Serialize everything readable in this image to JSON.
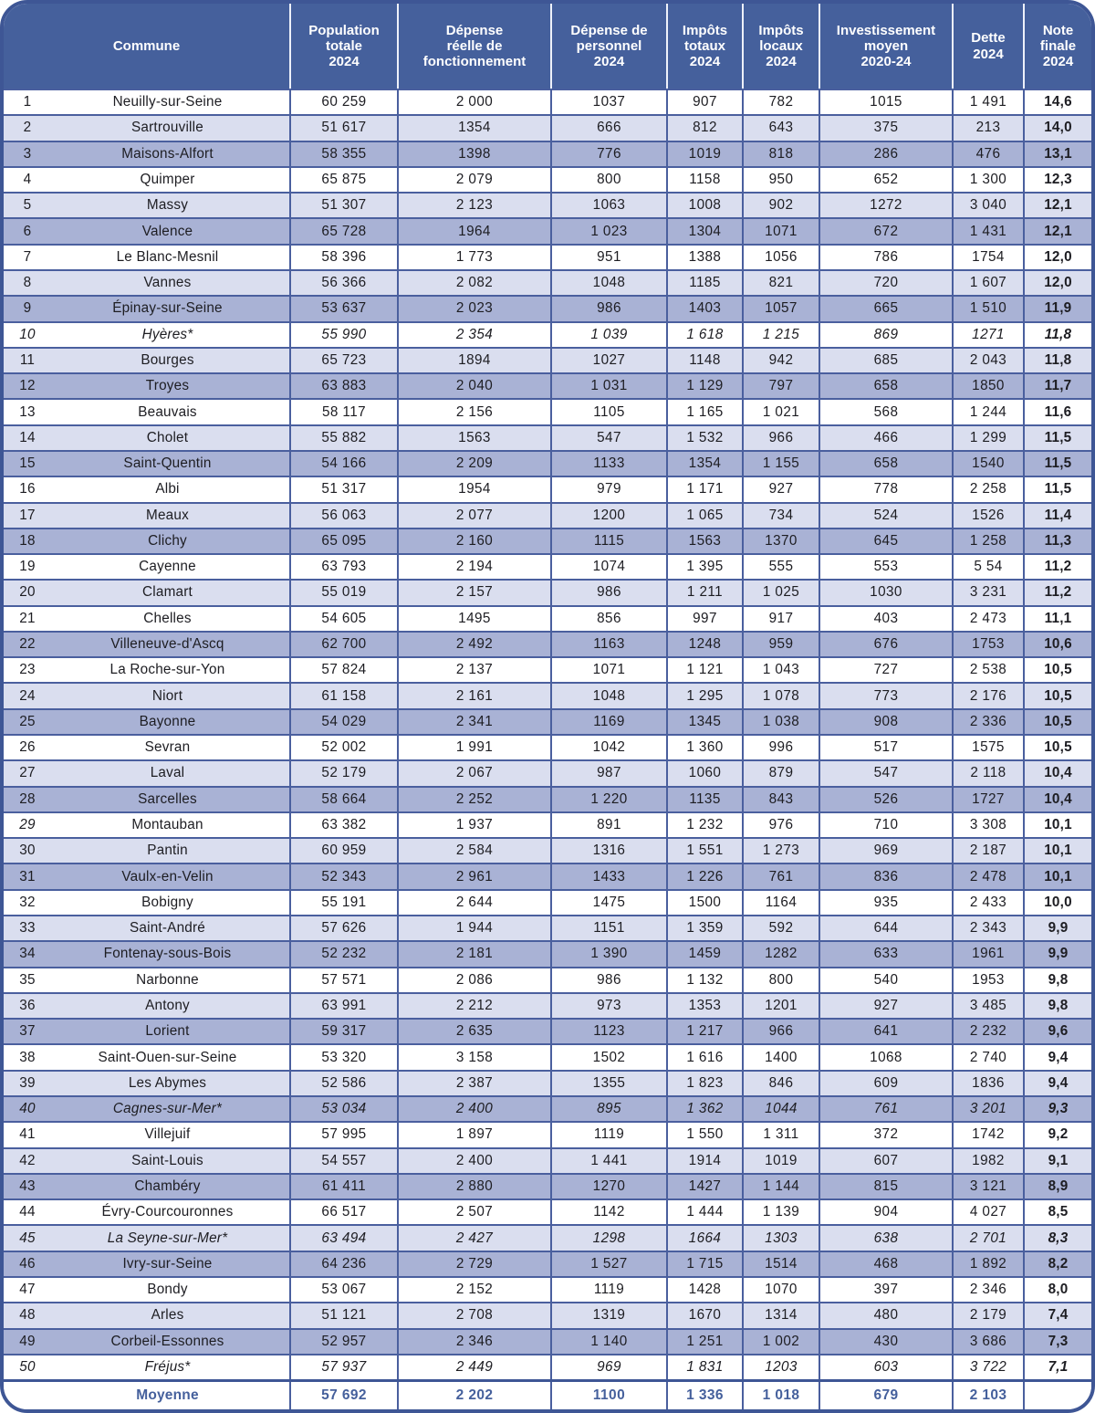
{
  "colors": {
    "header_bg": "#45609c",
    "grid_border": "#4a5f9e",
    "outer_border": "#3e5695",
    "row_light": "#dadeef",
    "row_dark": "#a9b2d5",
    "average_text": "#45609c",
    "header_text": "#ffffff",
    "body_text": "#1d1d22"
  },
  "chart_data": {
    "type": "table",
    "columns": [
      "Commune",
      "Population\ntotale\n2024",
      "Dépense\nréelle de\nfonctionnement",
      "Dépense de\npersonnel\n2024",
      "Impôts\ntotaux\n2024",
      "Impôts\nlocaux\n2024",
      "Investissement\nmoyen\n2020-24",
      "Dette\n2024",
      "Note\nfinale\n2024"
    ],
    "rows": [
      {
        "rank": "1",
        "name": "Neuilly-sur-Seine",
        "values": [
          "60 259",
          "2 000",
          "1037",
          "907",
          "782",
          "1015",
          "1 491"
        ],
        "note": "14,6",
        "shade": "white"
      },
      {
        "rank": "2",
        "name": "Sartrouville",
        "values": [
          "51 617",
          "1354",
          "666",
          "812",
          "643",
          "375",
          "213"
        ],
        "note": "14,0",
        "shade": "light"
      },
      {
        "rank": "3",
        "name": "Maisons-Alfort",
        "values": [
          "58 355",
          "1398",
          "776",
          "1019",
          "818",
          "286",
          "476"
        ],
        "note": "13,1",
        "shade": "dark"
      },
      {
        "rank": "4",
        "name": "Quimper",
        "values": [
          "65 875",
          "2 079",
          "800",
          "1158",
          "950",
          "652",
          "1 300"
        ],
        "note": "12,3",
        "shade": "white"
      },
      {
        "rank": "5",
        "name": "Massy",
        "values": [
          "51 307",
          "2 123",
          "1063",
          "1008",
          "902",
          "1272",
          "3 040"
        ],
        "note": "12,1",
        "shade": "light"
      },
      {
        "rank": "6",
        "name": "Valence",
        "values": [
          "65 728",
          "1964",
          "1 023",
          "1304",
          "1071",
          "672",
          "1 431"
        ],
        "note": "12,1",
        "shade": "dark"
      },
      {
        "rank": "7",
        "name": "Le Blanc-Mesnil",
        "values": [
          "58 396",
          "1 773",
          "951",
          "1388",
          "1056",
          "786",
          "1754"
        ],
        "note": "12,0",
        "shade": "white"
      },
      {
        "rank": "8",
        "name": "Vannes",
        "values": [
          "56 366",
          "2 082",
          "1048",
          "1185",
          "821",
          "720",
          "1 607"
        ],
        "note": "12,0",
        "shade": "light"
      },
      {
        "rank": "9",
        "name": "Épinay-sur-Seine",
        "values": [
          "53 637",
          "2 023",
          "986",
          "1403",
          "1057",
          "665",
          "1 510"
        ],
        "note": "11,9",
        "shade": "dark"
      },
      {
        "rank": "10",
        "name": "Hyères*",
        "values": [
          "55 990",
          "2 354",
          "1 039",
          "1 618",
          "1 215",
          "869",
          "1271"
        ],
        "note": "11,8",
        "shade": "white",
        "italic": true
      },
      {
        "rank": "11",
        "name": "Bourges",
        "values": [
          "65 723",
          "1894",
          "1027",
          "1148",
          "942",
          "685",
          "2 043"
        ],
        "note": "11,8",
        "shade": "light"
      },
      {
        "rank": "12",
        "name": "Troyes",
        "values": [
          "63 883",
          "2 040",
          "1 031",
          "1 129",
          "797",
          "658",
          "1850"
        ],
        "note": "11,7",
        "shade": "dark"
      },
      {
        "rank": "13",
        "name": "Beauvais",
        "values": [
          "58 117",
          "2 156",
          "1105",
          "1 165",
          "1 021",
          "568",
          "1 244"
        ],
        "note": "11,6",
        "shade": "white"
      },
      {
        "rank": "14",
        "name": "Cholet",
        "values": [
          "55 882",
          "1563",
          "547",
          "1 532",
          "966",
          "466",
          "1 299"
        ],
        "note": "11,5",
        "shade": "light"
      },
      {
        "rank": "15",
        "name": "Saint-Quentin",
        "values": [
          "54 166",
          "2 209",
          "1133",
          "1354",
          "1 155",
          "658",
          "1540"
        ],
        "note": "11,5",
        "shade": "dark"
      },
      {
        "rank": "16",
        "name": "Albi",
        "values": [
          "51 317",
          "1954",
          "979",
          "1 171",
          "927",
          "778",
          "2 258"
        ],
        "note": "11,5",
        "shade": "white"
      },
      {
        "rank": "17",
        "name": "Meaux",
        "values": [
          "56 063",
          "2 077",
          "1200",
          "1 065",
          "734",
          "524",
          "1526"
        ],
        "note": "11,4",
        "shade": "light"
      },
      {
        "rank": "18",
        "name": "Clichy",
        "values": [
          "65 095",
          "2 160",
          "1115",
          "1563",
          "1370",
          "645",
          "1 258"
        ],
        "note": "11,3",
        "shade": "dark"
      },
      {
        "rank": "19",
        "name": "Cayenne",
        "values": [
          "63 793",
          "2 194",
          "1074",
          "1 395",
          "555",
          "553",
          "5 54"
        ],
        "note": "11,2",
        "shade": "white"
      },
      {
        "rank": "20",
        "name": "Clamart",
        "values": [
          "55 019",
          "2 157",
          "986",
          "1 211",
          "1 025",
          "1030",
          "3 231"
        ],
        "note": "11,2",
        "shade": "light"
      },
      {
        "rank": "21",
        "name": "Chelles",
        "values": [
          "54 605",
          "1495",
          "856",
          "997",
          "917",
          "403",
          "2 473"
        ],
        "note": "11,1",
        "shade": "white"
      },
      {
        "rank": "22",
        "name": "Villeneuve-d'Ascq",
        "values": [
          "62 700",
          "2 492",
          "1163",
          "1248",
          "959",
          "676",
          "1753"
        ],
        "note": "10,6",
        "shade": "dark"
      },
      {
        "rank": "23",
        "name": "La Roche-sur-Yon",
        "values": [
          "57 824",
          "2 137",
          "1071",
          "1 121",
          "1 043",
          "727",
          "2 538"
        ],
        "note": "10,5",
        "shade": "white"
      },
      {
        "rank": "24",
        "name": "Niort",
        "values": [
          "61 158",
          "2 161",
          "1048",
          "1 295",
          "1 078",
          "773",
          "2 176"
        ],
        "note": "10,5",
        "shade": "light"
      },
      {
        "rank": "25",
        "name": "Bayonne",
        "values": [
          "54 029",
          "2 341",
          "1169",
          "1345",
          "1 038",
          "908",
          "2 336"
        ],
        "note": "10,5",
        "shade": "dark"
      },
      {
        "rank": "26",
        "name": "Sevran",
        "values": [
          "52 002",
          "1 991",
          "1042",
          "1 360",
          "996",
          "517",
          "1575"
        ],
        "note": "10,5",
        "shade": "white"
      },
      {
        "rank": "27",
        "name": "Laval",
        "values": [
          "52 179",
          "2 067",
          "987",
          "1060",
          "879",
          "547",
          "2 118"
        ],
        "note": "10,4",
        "shade": "light"
      },
      {
        "rank": "28",
        "name": "Sarcelles",
        "values": [
          "58 664",
          "2 252",
          "1 220",
          "1135",
          "843",
          "526",
          "1727"
        ],
        "note": "10,4",
        "shade": "dark"
      },
      {
        "rank": "29",
        "name": "Montauban",
        "values": [
          "63 382",
          "1 937",
          "891",
          "1 232",
          "976",
          "710",
          "3 308"
        ],
        "note": "10,1",
        "shade": "white",
        "rank_italic": true
      },
      {
        "rank": "30",
        "name": "Pantin",
        "values": [
          "60 959",
          "2 584",
          "1316",
          "1 551",
          "1 273",
          "969",
          "2 187"
        ],
        "note": "10,1",
        "shade": "light"
      },
      {
        "rank": "31",
        "name": "Vaulx-en-Velin",
        "values": [
          "52 343",
          "2 961",
          "1433",
          "1 226",
          "761",
          "836",
          "2 478"
        ],
        "note": "10,1",
        "shade": "dark"
      },
      {
        "rank": "32",
        "name": "Bobigny",
        "values": [
          "55 191",
          "2 644",
          "1475",
          "1500",
          "1164",
          "935",
          "2 433"
        ],
        "note": "10,0",
        "shade": "white"
      },
      {
        "rank": "33",
        "name": "Saint-André",
        "values": [
          "57 626",
          "1 944",
          "1151",
          "1 359",
          "592",
          "644",
          "2 343"
        ],
        "note": "9,9",
        "shade": "light"
      },
      {
        "rank": "34",
        "name": "Fontenay-sous-Bois",
        "values": [
          "52 232",
          "2 181",
          "1 390",
          "1459",
          "1282",
          "633",
          "1961"
        ],
        "note": "9,9",
        "shade": "dark"
      },
      {
        "rank": "35",
        "name": "Narbonne",
        "values": [
          "57 571",
          "2 086",
          "986",
          "1 132",
          "800",
          "540",
          "1953"
        ],
        "note": "9,8",
        "shade": "white"
      },
      {
        "rank": "36",
        "name": "Antony",
        "values": [
          "63 991",
          "2 212",
          "973",
          "1353",
          "1201",
          "927",
          "3 485"
        ],
        "note": "9,8",
        "shade": "light"
      },
      {
        "rank": "37",
        "name": "Lorient",
        "values": [
          "59 317",
          "2 635",
          "1123",
          "1 217",
          "966",
          "641",
          "2 232"
        ],
        "note": "9,6",
        "shade": "dark"
      },
      {
        "rank": "38",
        "name": "Saint-Ouen-sur-Seine",
        "values": [
          "53 320",
          "3 158",
          "1502",
          "1 616",
          "1400",
          "1068",
          "2 740"
        ],
        "note": "9,4",
        "shade": "white"
      },
      {
        "rank": "39",
        "name": "Les Abymes",
        "values": [
          "52 586",
          "2 387",
          "1355",
          "1 823",
          "846",
          "609",
          "1836"
        ],
        "note": "9,4",
        "shade": "light"
      },
      {
        "rank": "40",
        "name": "Cagnes-sur-Mer*",
        "values": [
          "53 034",
          "2 400",
          "895",
          "1 362",
          "1044",
          "761",
          "3 201"
        ],
        "note": "9,3",
        "shade": "dark",
        "italic": true
      },
      {
        "rank": "41",
        "name": "Villejuif",
        "values": [
          "57 995",
          "1 897",
          "1119",
          "1 550",
          "1 311",
          "372",
          "1742"
        ],
        "note": "9,2",
        "shade": "white"
      },
      {
        "rank": "42",
        "name": "Saint-Louis",
        "values": [
          "54 557",
          "2 400",
          "1 441",
          "1914",
          "1019",
          "607",
          "1982"
        ],
        "note": "9,1",
        "shade": "light"
      },
      {
        "rank": "43",
        "name": "Chambéry",
        "values": [
          "61 411",
          "2 880",
          "1270",
          "1427",
          "1 144",
          "815",
          "3 121"
        ],
        "note": "8,9",
        "shade": "dark"
      },
      {
        "rank": "44",
        "name": "Évry-Courcouronnes",
        "values": [
          "66 517",
          "2 507",
          "1142",
          "1 444",
          "1 139",
          "904",
          "4 027"
        ],
        "note": "8,5",
        "shade": "white"
      },
      {
        "rank": "45",
        "name": "La Seyne-sur-Mer*",
        "values": [
          "63 494",
          "2 427",
          "1298",
          "1664",
          "1303",
          "638",
          "2 701"
        ],
        "note": "8,3",
        "shade": "light",
        "italic": true
      },
      {
        "rank": "46",
        "name": "Ivry-sur-Seine",
        "values": [
          "64 236",
          "2 729",
          "1 527",
          "1 715",
          "1514",
          "468",
          "1 892"
        ],
        "note": "8,2",
        "shade": "dark"
      },
      {
        "rank": "47",
        "name": "Bondy",
        "values": [
          "53 067",
          "2 152",
          "1119",
          "1428",
          "1070",
          "397",
          "2 346"
        ],
        "note": "8,0",
        "shade": "white"
      },
      {
        "rank": "48",
        "name": "Arles",
        "values": [
          "51 121",
          "2 708",
          "1319",
          "1670",
          "1314",
          "480",
          "2 179"
        ],
        "note": "7,4",
        "shade": "light"
      },
      {
        "rank": "49",
        "name": "Corbeil-Essonnes",
        "values": [
          "52 957",
          "2 346",
          "1 140",
          "1 251",
          "1 002",
          "430",
          "3 686"
        ],
        "note": "7,3",
        "shade": "dark"
      },
      {
        "rank": "50",
        "name": "Fréjus*",
        "values": [
          "57 937",
          "2 449",
          "969",
          "1 831",
          "1203",
          "603",
          "3 722"
        ],
        "note": "7,1",
        "shade": "white",
        "italic": true
      }
    ],
    "average": {
      "label": "Moyenne",
      "values": [
        "57 692",
        "2 202",
        "1100",
        "1 336",
        "1 018",
        "679",
        "2 103"
      ],
      "note": ""
    }
  }
}
